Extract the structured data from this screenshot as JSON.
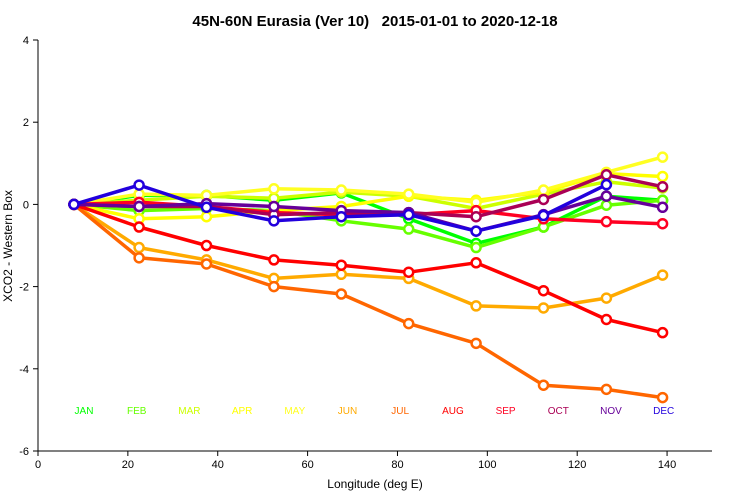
{
  "chart_data": {
    "type": "line",
    "title": "45N-60N Eurasia (Ver 10)   2015-01-01 to 2020-12-18",
    "xlabel": "Longitude (deg E)",
    "ylabel": "XCO2 - Western Box",
    "xlim": [
      0,
      150
    ],
    "ylim": [
      -6,
      4
    ],
    "xticks": [
      0,
      20,
      40,
      60,
      80,
      100,
      120,
      140
    ],
    "yticks": [
      -6,
      -4,
      -2,
      0,
      2,
      4
    ],
    "grid": false,
    "x": [
      8,
      22.5,
      37.5,
      52.5,
      67.5,
      82.5,
      97.5,
      112.5,
      126.5,
      139
    ],
    "series": [
      {
        "name": "JAN",
        "color": "#00ff00",
        "values": [
          0,
          0.22,
          0.22,
          0.1,
          0.28,
          -0.35,
          -0.95,
          -0.55,
          0.2,
          0.1
        ]
      },
      {
        "name": "FEB",
        "color": "#66ff00",
        "values": [
          0,
          -0.15,
          -0.1,
          -0.15,
          -0.4,
          -0.6,
          -1.05,
          -0.55,
          -0.02,
          0.1
        ]
      },
      {
        "name": "MAR",
        "color": "#ccff00",
        "values": [
          0,
          0.1,
          0.2,
          0.15,
          0.3,
          0.2,
          -0.1,
          0.25,
          0.55,
          0.4
        ]
      },
      {
        "name": "APR",
        "color": "#ffff00",
        "values": [
          0,
          -0.35,
          -0.3,
          -0.15,
          -0.05,
          0.2,
          0.1,
          0.3,
          0.75,
          0.68
        ]
      },
      {
        "name": "MAY",
        "color": "#ffff22",
        "values": [
          0,
          0.25,
          0.22,
          0.38,
          0.35,
          0.25,
          0.05,
          0.35,
          0.78,
          1.15
        ]
      },
      {
        "name": "JUN",
        "color": "#ffaa00",
        "values": [
          0,
          -1.05,
          -1.35,
          -1.8,
          -1.7,
          -1.8,
          -2.47,
          -2.52,
          -2.28,
          -1.72
        ]
      },
      {
        "name": "JUL",
        "color": "#ff6600",
        "values": [
          0,
          -1.3,
          -1.45,
          -2.0,
          -2.18,
          -2.9,
          -3.38,
          -4.4,
          -4.5,
          -4.7
        ]
      },
      {
        "name": "AUG",
        "color": "#ff0000",
        "values": [
          0,
          -0.55,
          -1.0,
          -1.35,
          -1.48,
          -1.65,
          -1.42,
          -2.1,
          -2.8,
          -3.12
        ]
      },
      {
        "name": "SEP",
        "color": "#ff0022",
        "values": [
          0,
          0.05,
          -0.05,
          -0.2,
          -0.25,
          -0.25,
          -0.15,
          -0.35,
          -0.42,
          -0.47
        ]
      },
      {
        "name": "OCT",
        "color": "#aa0055",
        "values": [
          0,
          -0.05,
          -0.05,
          -0.25,
          -0.2,
          -0.2,
          -0.3,
          0.12,
          0.72,
          0.43
        ]
      },
      {
        "name": "NOV",
        "color": "#660099",
        "values": [
          0,
          -0.05,
          0.02,
          -0.05,
          -0.15,
          -0.2,
          -0.65,
          -0.25,
          0.2,
          -0.07
        ]
      },
      {
        "name": "DEC",
        "color": "#2200dd",
        "values": [
          0,
          0.47,
          -0.07,
          -0.4,
          -0.3,
          -0.25,
          -0.65,
          -0.27,
          0.48,
          null
        ]
      }
    ]
  }
}
